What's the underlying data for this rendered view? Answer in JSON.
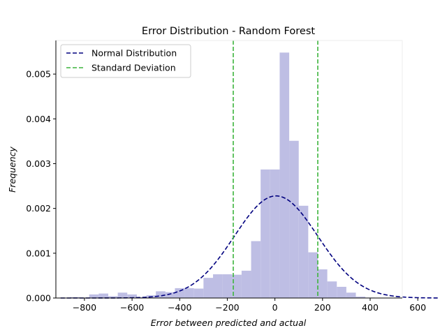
{
  "chart_data": {
    "type": "bar",
    "title": "Error Distribution - Random Forest",
    "xlabel": "Error between predicted and actual",
    "ylabel": "Frequency",
    "xlim": [
      -920,
      535
    ],
    "ylim": [
      0,
      0.00575
    ],
    "x_ticks": [
      -800,
      -600,
      -400,
      -200,
      0,
      200,
      400,
      600
    ],
    "x_tick_labels": [
      "−800",
      "−600",
      "−400",
      "−200",
      "0",
      "200",
      "400",
      "600"
    ],
    "y_ticks": [
      0.0,
      0.001,
      0.002,
      0.003,
      0.004,
      0.005
    ],
    "y_tick_labels": [
      "0.000",
      "0.001",
      "0.002",
      "0.003",
      "0.004",
      "0.005"
    ],
    "histogram": {
      "bin_width": 40,
      "bin_starts": [
        -900,
        -860,
        -820,
        -780,
        -740,
        -700,
        -660,
        -620,
        -580,
        -540,
        -500,
        -460,
        -420,
        -380,
        -340,
        -300,
        -260,
        -220,
        -180,
        -140,
        -100,
        -60,
        -20,
        0,
        20,
        40,
        60,
        80,
        100,
        120,
        140,
        160,
        180,
        200,
        220,
        260,
        300,
        340,
        380
      ],
      "values": [
        5e-06,
        2e-05,
        1e-05,
        8e-05,
        0.0001,
        4e-05,
        0.00012,
        8e-05,
        2e-05,
        6e-05,
        0.00015,
        0.00013,
        0.00022,
        0.00022,
        0.00021,
        0.00045,
        0.00053,
        0.00053,
        0.00052,
        0.00061,
        0.00127,
        0.00287,
        0.0,
        0.0,
        0.0,
        0.0,
        0.0,
        0.0,
        0.0,
        0.0,
        0.0,
        0.0,
        0.00102,
        0.00064,
        0.00037,
        0.00025,
        0.00012,
        3e-05,
        0.0
      ],
      "color": "#bebee4"
    },
    "histogram_core": {
      "bin_starts": [
        -20,
        20,
        60,
        100,
        140,
        180,
        220,
        260,
        300,
        340,
        380,
        420
      ],
      "values": [
        0.00287,
        0.00548,
        0.00351,
        0.00206,
        0.00102,
        0.00064,
        0.00037,
        0.00025,
        0.00012,
        3e-05,
        1e-05,
        0.0
      ]
    },
    "series": [
      {
        "name": "Normal Distribution",
        "kind": "normal_pdf",
        "mean": 5,
        "std": 175,
        "x_range": [
          -900,
          690
        ],
        "color": "#00007f",
        "style": "dashed"
      },
      {
        "name": "Standard Deviation",
        "kind": "vlines",
        "x": [
          -175,
          180
        ],
        "color": "#3cb43c",
        "style": "dashed"
      }
    ],
    "legend_placement": "top-left",
    "grid": false
  }
}
